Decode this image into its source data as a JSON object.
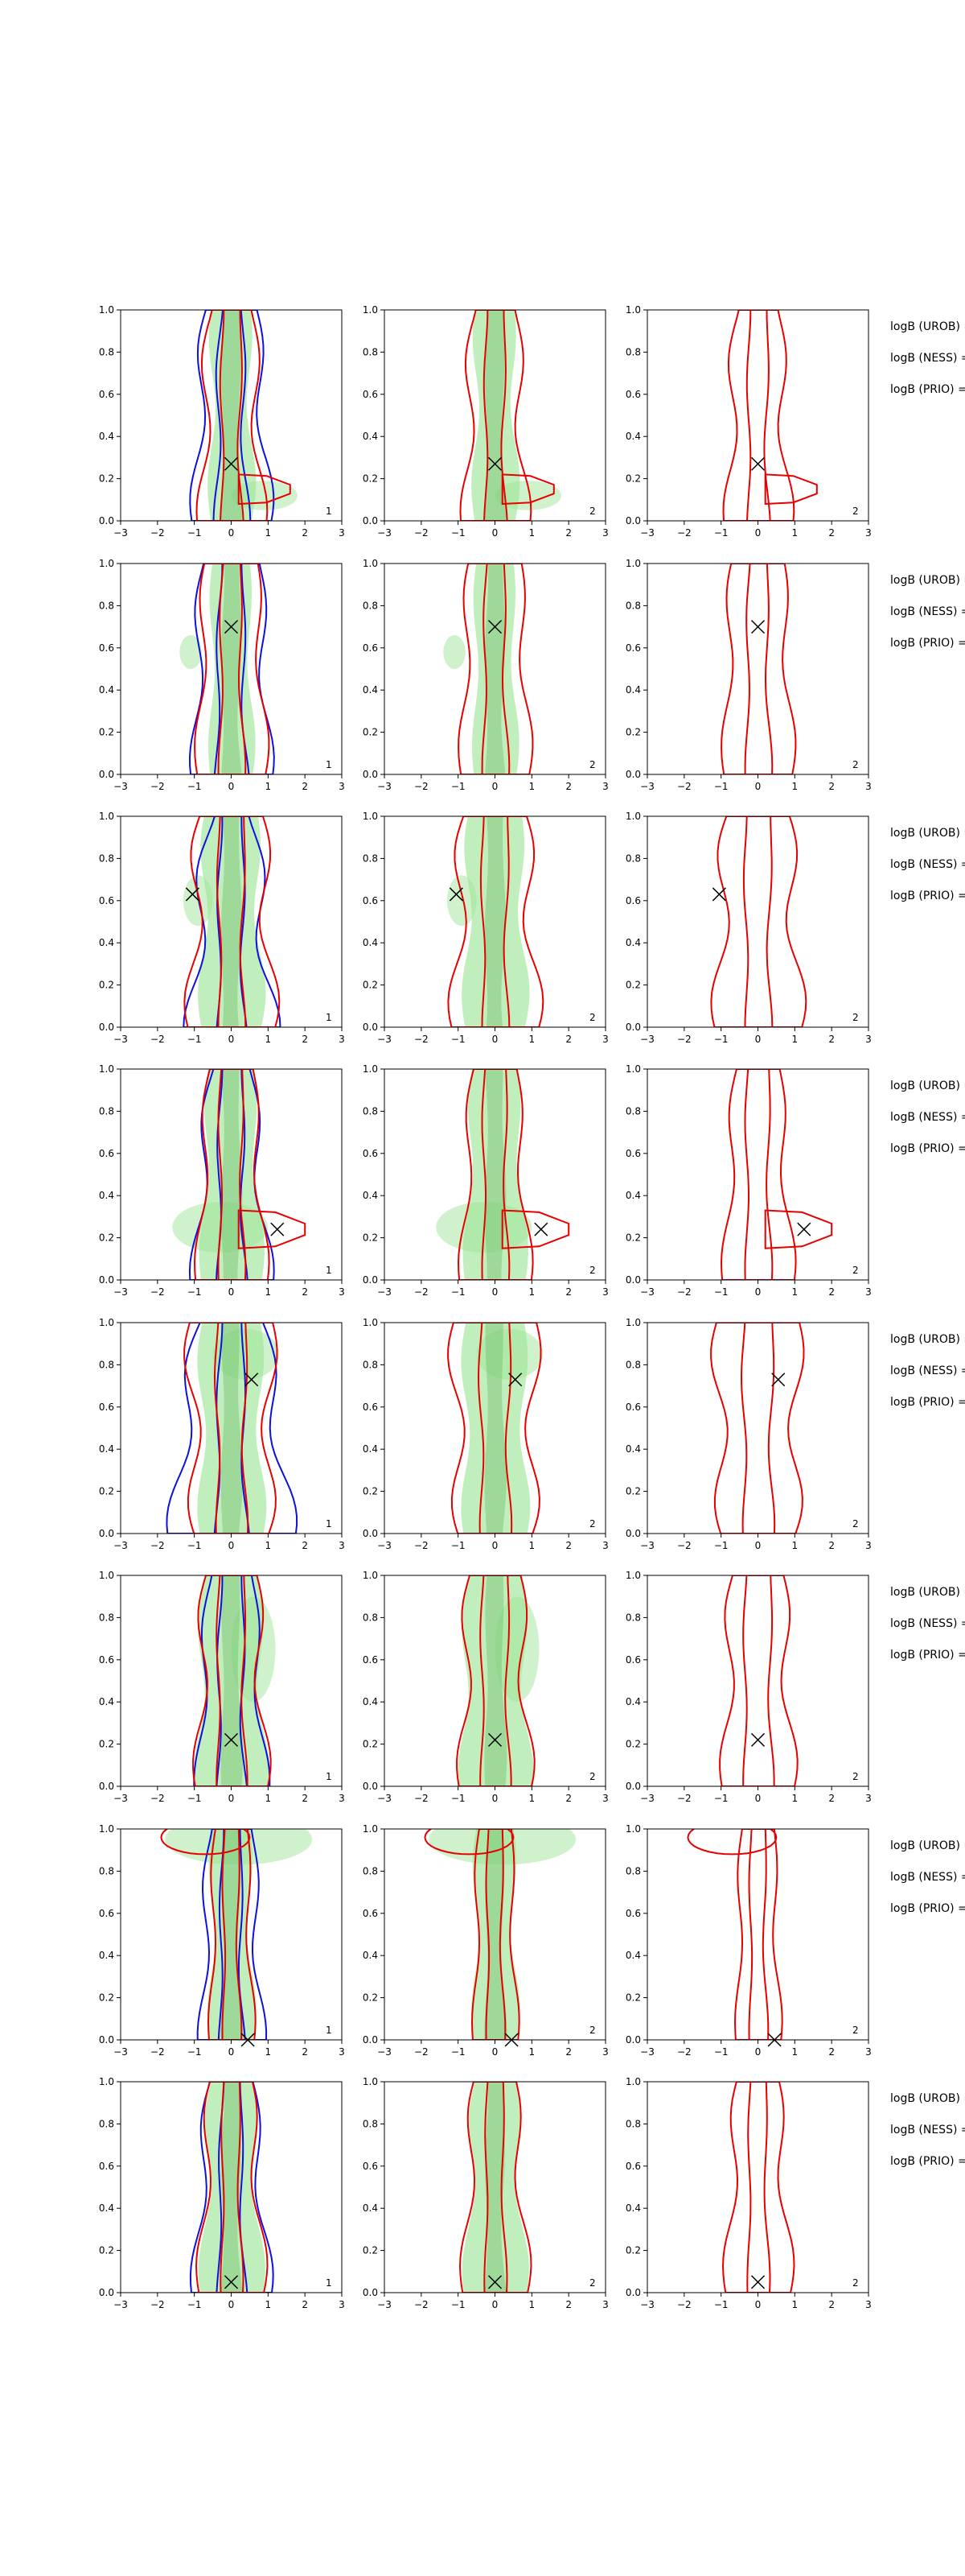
{
  "chart_data": {
    "type": "contour",
    "xlim": [
      -3,
      3
    ],
    "ylim": [
      0,
      1
    ],
    "x_ticks": [
      -3,
      -2,
      -1,
      0,
      1,
      2,
      3
    ],
    "y_ticks": [
      0.0,
      0.2,
      0.4,
      0.6,
      0.8,
      1.0
    ],
    "x_tick_labels": [
      "−3",
      "−2",
      "−1",
      "0",
      "1",
      "2",
      "3"
    ],
    "y_tick_labels": [
      "0.0",
      "0.2",
      "0.4",
      "0.6",
      "0.8",
      "1.0"
    ],
    "grid": false,
    "colors": {
      "red_contour": "#e60000",
      "blue_contour": "#1010dd",
      "green_fill": "#9fe59a",
      "green_fill_dark": "#5fb35a",
      "marker": "#000000"
    },
    "side_labels": [
      "logB (UROB) =",
      "logB (NESS) =",
      "logB (PRIO) ="
    ],
    "panel_ids": [
      "1",
      "2",
      "2"
    ],
    "rows": [
      {
        "marker": [
          0.0,
          0.27
        ]
      },
      {
        "marker": [
          0.0,
          0.7
        ]
      },
      {
        "marker": [
          -1.05,
          0.63
        ]
      },
      {
        "marker": [
          1.25,
          0.24
        ]
      },
      {
        "marker": [
          0.55,
          0.73
        ]
      },
      {
        "marker": [
          0.0,
          0.22
        ]
      },
      {
        "marker": [
          0.45,
          0.0
        ]
      },
      {
        "marker": [
          0.0,
          0.05
        ]
      }
    ]
  }
}
